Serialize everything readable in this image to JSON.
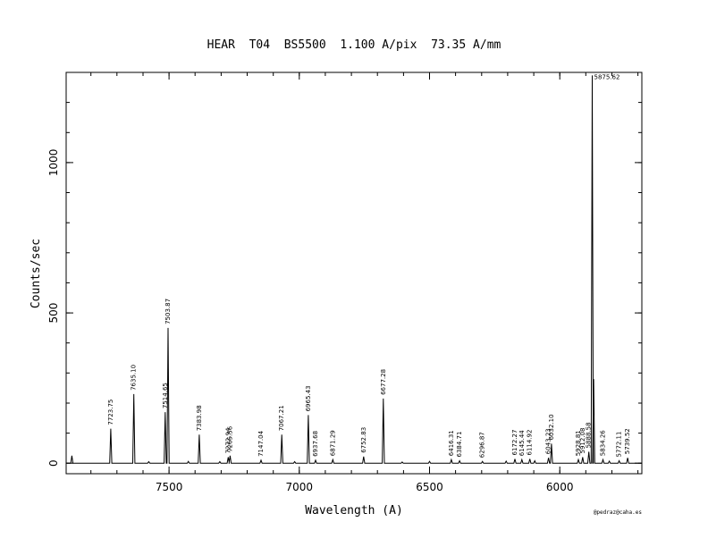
{
  "chart_data": {
    "type": "line",
    "title": "HEAR  T04  BS5500  1.100 A/pix  73.35 A/mm",
    "xlabel": "Wavelength (A)",
    "ylabel": "Counts/sec",
    "xlim": [
      7895,
      5685
    ],
    "ylim": [
      -35,
      1300
    ],
    "x_ticks": [
      7500,
      7000,
      6500,
      6000
    ],
    "x_tick_labels": [
      "7500",
      "7000",
      "6500",
      "6000"
    ],
    "y_ticks": [
      0,
      500,
      1000
    ],
    "y_tick_labels": [
      "0",
      "500",
      "1000"
    ],
    "credit": "@pedraz@caha.es",
    "peaks": [
      {
        "x": 7723.75,
        "y": 115,
        "label": "7723.75"
      },
      {
        "x": 7635.1,
        "y": 230,
        "label": "7635.10"
      },
      {
        "x": 7514.65,
        "y": 170,
        "label": "7514.65"
      },
      {
        "x": 7503.87,
        "y": 450,
        "label": "7503.87"
      },
      {
        "x": 7383.98,
        "y": 95,
        "label": "7383.98"
      },
      {
        "x": 7272.94,
        "y": 20,
        "label": "7272.94"
      },
      {
        "x": 7265.56,
        "y": 25,
        "label": "7265.56"
      },
      {
        "x": 7147.04,
        "y": 10,
        "label": "7147.04"
      },
      {
        "x": 7067.21,
        "y": 95,
        "label": "7067.21"
      },
      {
        "x": 6965.43,
        "y": 160,
        "label": "6965.43"
      },
      {
        "x": 6937.68,
        "y": 10,
        "label": "6937.68"
      },
      {
        "x": 6871.29,
        "y": 12,
        "label": "6871.29"
      },
      {
        "x": 6752.83,
        "y": 22,
        "label": "6752.83"
      },
      {
        "x": 6677.28,
        "y": 215,
        "label": "6677.28"
      },
      {
        "x": 6416.31,
        "y": 12,
        "label": "6416.31"
      },
      {
        "x": 6384.71,
        "y": 8,
        "label": "6384.71"
      },
      {
        "x": 6296.87,
        "y": 6,
        "label": "6296.87"
      },
      {
        "x": 6172.27,
        "y": 14,
        "label": "6172.27"
      },
      {
        "x": 6145.44,
        "y": 12,
        "label": "6145.44"
      },
      {
        "x": 6114.92,
        "y": 14,
        "label": "6114.92"
      },
      {
        "x": 6043.23,
        "y": 18,
        "label": "6043.23"
      },
      {
        "x": 6032.1,
        "y": 65,
        "label": "6032.10"
      },
      {
        "x": 5928.81,
        "y": 12,
        "label": "5928.81"
      },
      {
        "x": 5912.08,
        "y": 20,
        "label": "5912.08"
      },
      {
        "x": 5888.58,
        "y": 38,
        "label": "5888.58"
      },
      {
        "x": 5875.62,
        "y": 1290,
        "label": "5875.62"
      },
      {
        "x": 5834.26,
        "y": 12,
        "label": "5834.26"
      },
      {
        "x": 5772.11,
        "y": 8,
        "label": "5772.11"
      },
      {
        "x": 5739.52,
        "y": 18,
        "label": "5739.52"
      }
    ],
    "minor_peaks": [
      {
        "x": 7873,
        "y": 25
      },
      {
        "x": 7578,
        "y": 5
      },
      {
        "x": 7426,
        "y": 6
      },
      {
        "x": 7305,
        "y": 5
      },
      {
        "x": 7018,
        "y": 5
      },
      {
        "x": 6605,
        "y": 4
      },
      {
        "x": 6500,
        "y": 6
      },
      {
        "x": 6206,
        "y": 7
      },
      {
        "x": 6096,
        "y": 8
      },
      {
        "x": 5870,
        "y": 280
      },
      {
        "x": 5810,
        "y": 7
      }
    ]
  }
}
